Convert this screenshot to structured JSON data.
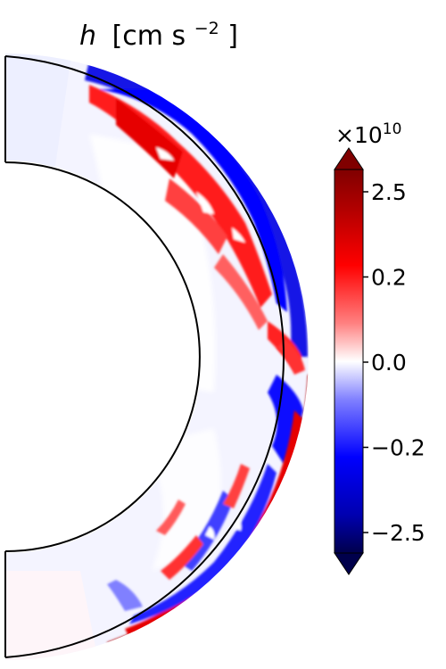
{
  "chart_data": {
    "type": "heatmap",
    "title_var": "h",
    "title_unit": "[cm s",
    "title_unit_exp": "−2",
    "title_unit_close": "]",
    "geometry": "meridional half-annulus (spherical shell slice)",
    "colormap": "seismic (diverging blue-white-red)",
    "colorbar": {
      "multiplier_base": "×10",
      "multiplier_exp": "10",
      "ticks": [
        "2.5",
        "0.2",
        "0.0",
        "−0.2",
        "−2.5"
      ],
      "tick_values": [
        2.5,
        0.2,
        0.0,
        -0.2,
        -2.5
      ],
      "range": [
        -2.5,
        2.5
      ],
      "extend": "both",
      "colors": [
        "#00004c",
        "#0000ff",
        "#ffffff",
        "#ff0000",
        "#800000"
      ]
    },
    "description_regions": {
      "inner_shell": "near zero (white / faint blue)",
      "outer_shell_upper": "strong positive (red) with negative (blue) band at outer edge",
      "outer_shell_lower": "strong positive (dark red) at outer edge with blue interior patches"
    }
  }
}
